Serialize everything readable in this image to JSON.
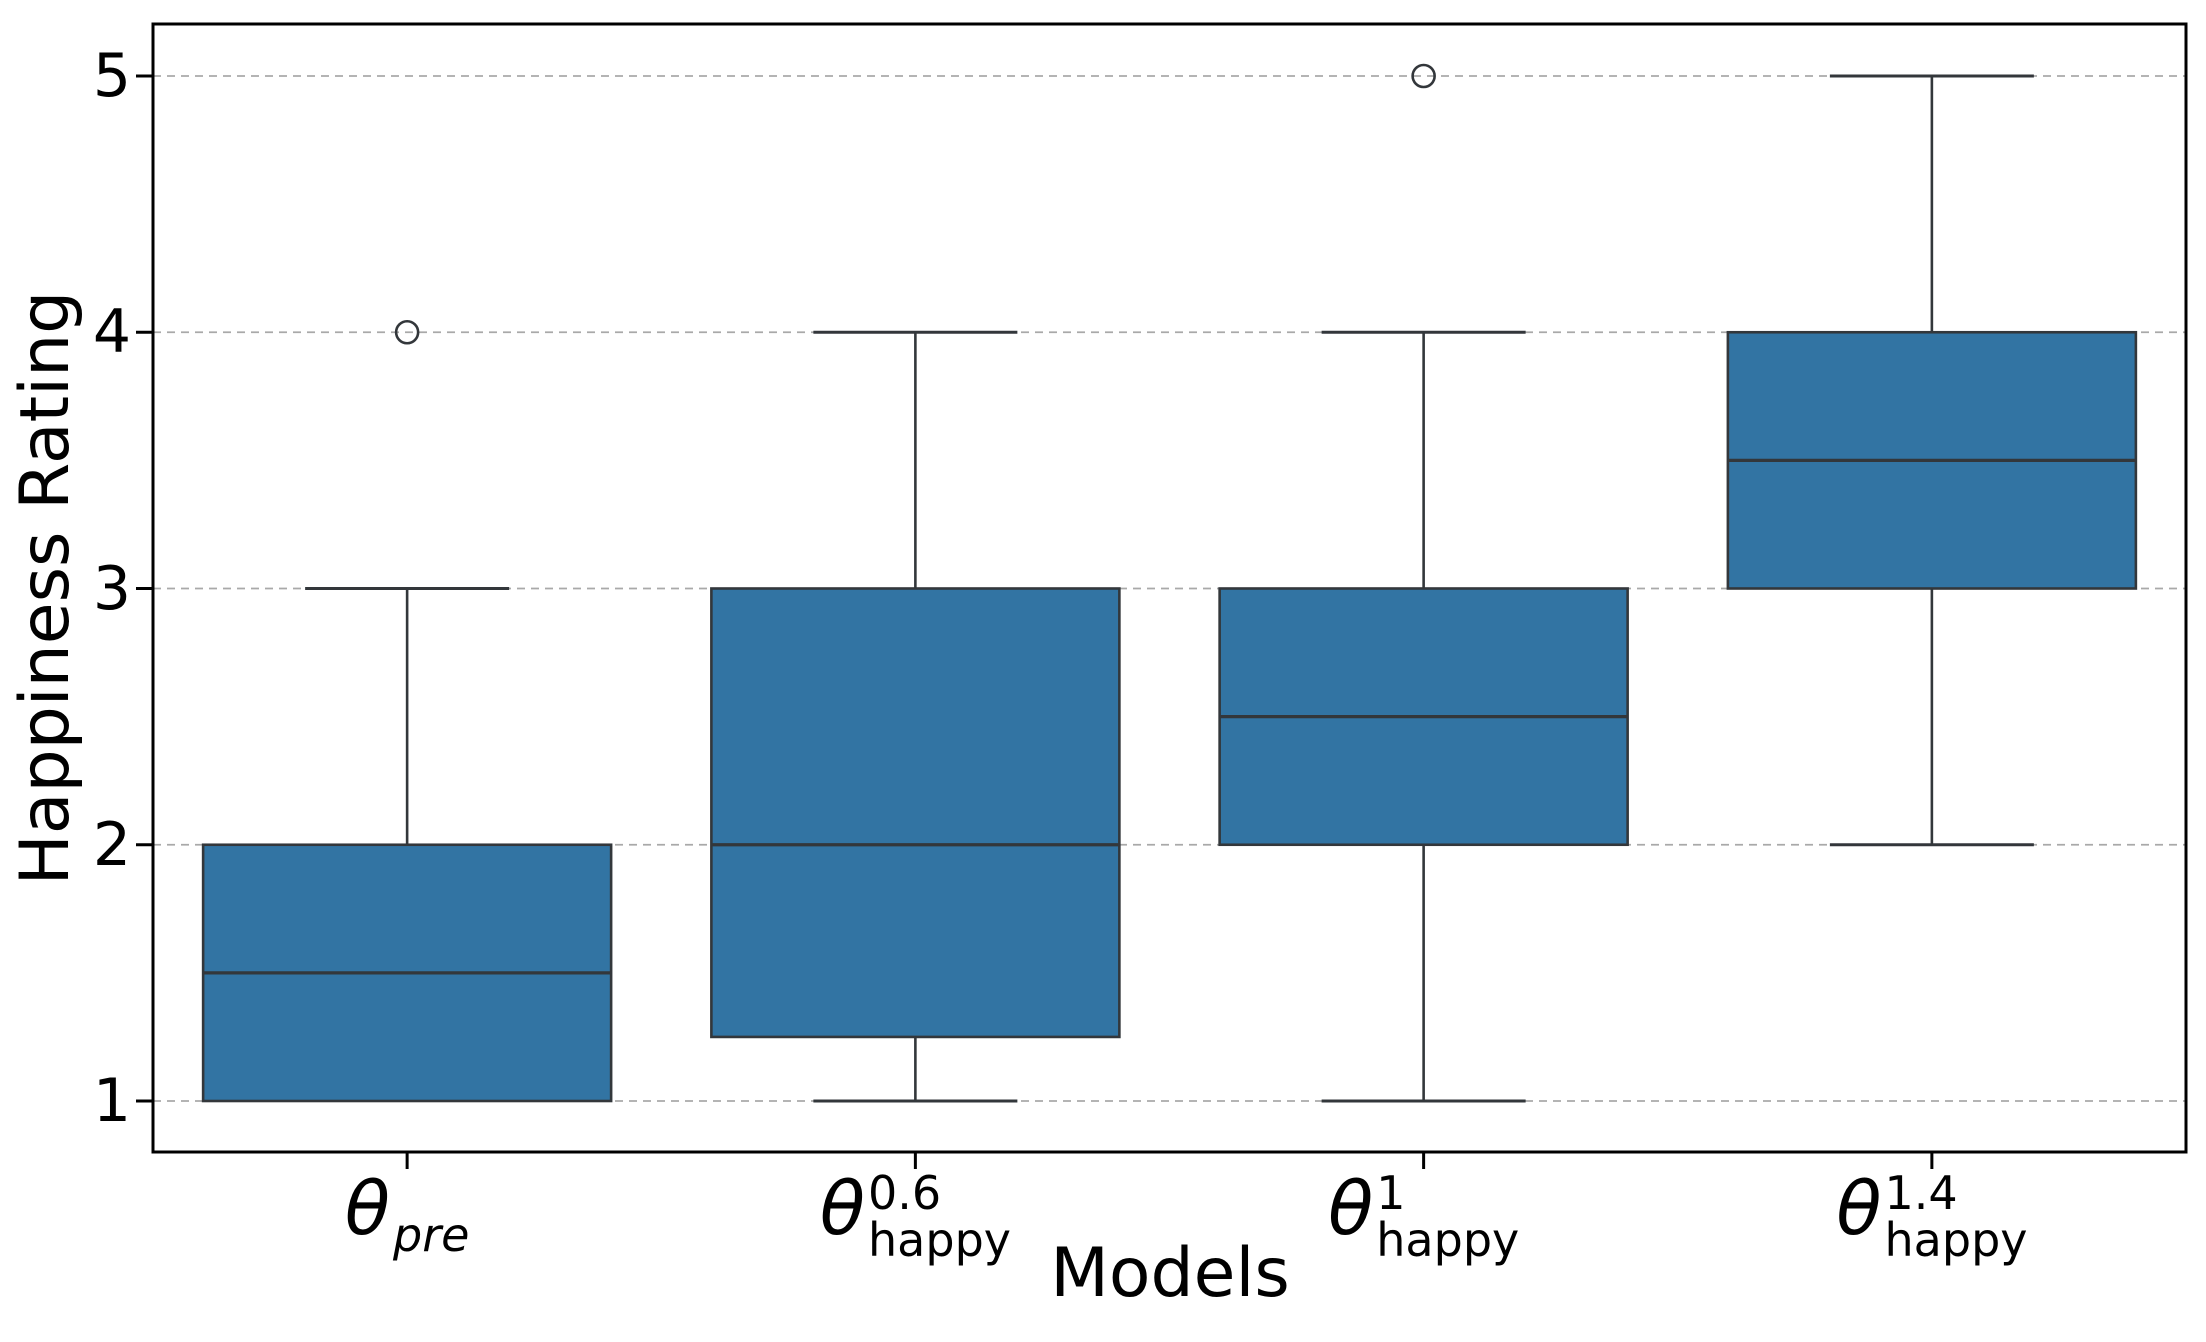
{
  "chart_data": {
    "type": "boxplot",
    "xlabel": "Models",
    "ylabel": "Happiness Rating",
    "ylim": [
      0.8,
      5.2
    ],
    "yticks": [
      1,
      2,
      3,
      4,
      5
    ],
    "ytick_labels": [
      "1",
      "2",
      "3",
      "4",
      "5"
    ],
    "grid": "horizontal-dashed",
    "legend": "none",
    "colors": {
      "box_fill": "#3274A3",
      "box_line": "#33373B",
      "spine": "#000000",
      "grid_line": "#A9A9A9",
      "outlier_stroke": "#33373B"
    },
    "categories": [
      {
        "text": "θ_pre",
        "theta": "θ",
        "sup": "",
        "sub": "pre",
        "sub_italic": true
      },
      {
        "text": "θ^0.6_happy",
        "theta": "θ",
        "sup": "0.6",
        "sub": "happy",
        "sub_italic": false
      },
      {
        "text": "θ^1_happy",
        "theta": "θ",
        "sup": "1",
        "sub": "happy",
        "sub_italic": false
      },
      {
        "text": "θ^1.4_happy",
        "theta": "θ",
        "sup": "1.4",
        "sub": "happy",
        "sub_italic": false
      }
    ],
    "series": [
      {
        "whisker_low": 1,
        "q1": 1,
        "median": 1.5,
        "q3": 2,
        "whisker_high": 3,
        "outliers": [
          4
        ]
      },
      {
        "whisker_low": 1,
        "q1": 1.25,
        "median": 2,
        "q3": 3,
        "whisker_high": 4,
        "outliers": []
      },
      {
        "whisker_low": 1,
        "q1": 2,
        "median": 2.5,
        "q3": 3,
        "whisker_high": 4,
        "outliers": [
          5
        ]
      },
      {
        "whisker_low": 2,
        "q1": 3,
        "median": 3.5,
        "q3": 4,
        "whisker_high": 5,
        "outliers": []
      }
    ]
  }
}
